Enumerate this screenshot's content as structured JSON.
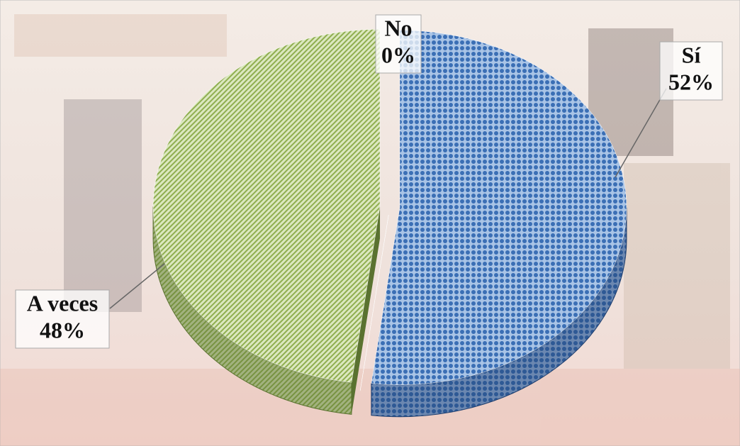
{
  "chart_data": {
    "type": "pie",
    "categories": [
      "Sí",
      "No",
      "A veces"
    ],
    "values": [
      52,
      0,
      48
    ],
    "value_labels": [
      "52%",
      "0%",
      "48%"
    ],
    "colors": [
      "#3b6fb5",
      "#c8c8c8",
      "#9bbb59"
    ]
  }
}
